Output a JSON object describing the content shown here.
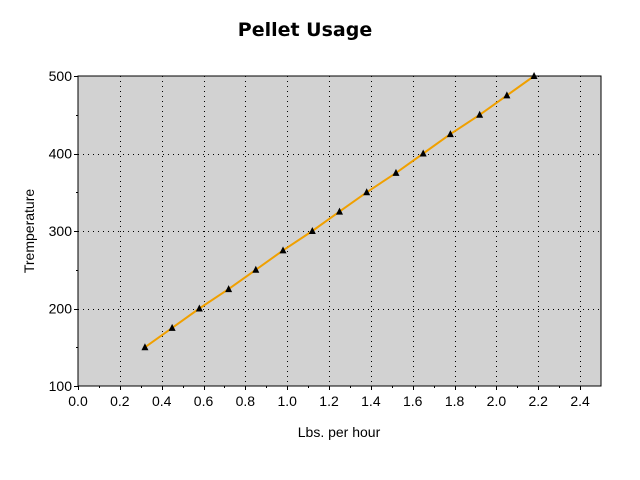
{
  "chart_data": {
    "type": "line",
    "title": "Pellet Usage",
    "xlabel": "Lbs. per hour",
    "ylabel": "Tremperature",
    "xlim": [
      0.0,
      2.5
    ],
    "ylim": [
      100,
      500
    ],
    "x_ticks": [
      "0.0",
      "0.2",
      "0.4",
      "0.6",
      "0.8",
      "1.0",
      "1.2",
      "1.4",
      "1.6",
      "1.8",
      "2.0",
      "2.2",
      "2.4"
    ],
    "y_ticks": [
      "100",
      "200",
      "300",
      "400",
      "500"
    ],
    "grid": true,
    "legend": "none",
    "colors": {
      "plot_bg": "#d2d2d2",
      "line": "#f0a000",
      "marker": "#000000"
    },
    "marker": "triangle",
    "series": [
      {
        "x": [
          0.32,
          0.45,
          0.58,
          0.72,
          0.85,
          0.98,
          1.12,
          1.25,
          1.38,
          1.52,
          1.65,
          1.78,
          1.92,
          2.05,
          2.18
        ],
        "y": [
          150,
          175,
          200,
          225,
          250,
          275,
          300,
          325,
          350,
          375,
          400,
          425,
          450,
          475,
          500
        ]
      }
    ]
  }
}
